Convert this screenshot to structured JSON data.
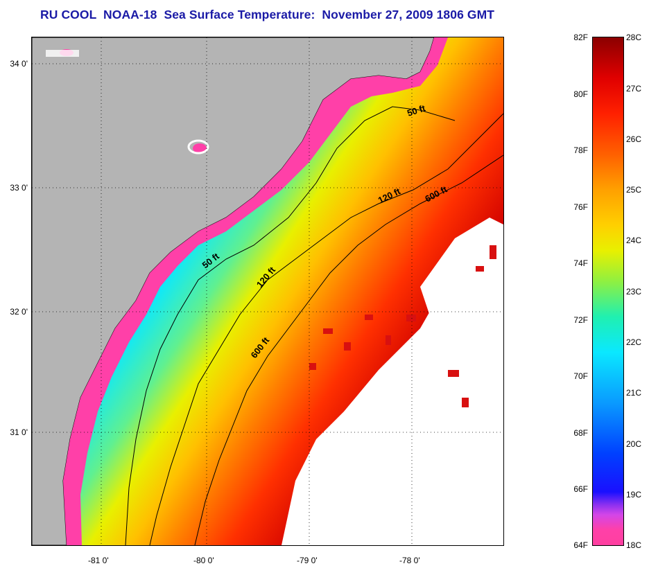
{
  "title": "RU COOL  NOAA-18  Sea Surface Temperature:  November 27, 2009 1806 GMT",
  "map": {
    "lat_labels": [
      "34 0'",
      "33 0'",
      "32 0'",
      "31 0'"
    ],
    "lon_labels": [
      "-81 0'",
      "-80 0'",
      "-79 0'",
      "-78 0'"
    ],
    "lat_range": [
      30.1,
      34.2
    ],
    "lon_range": [
      -81.5,
      -77.0
    ],
    "isobath_labels": [
      "50 ft",
      "50 ft",
      "120 ft",
      "120 ft",
      "600 ft",
      "600 ft"
    ],
    "colors": {
      "land": "#b4b4b4",
      "cloud": "#ffffff",
      "coastal": "#ff40a8"
    }
  },
  "colorbar": {
    "fahrenheit_ticks": [
      "82F",
      "80F",
      "78F",
      "76F",
      "74F",
      "72F",
      "70F",
      "68F",
      "66F",
      "64F"
    ],
    "celsius_ticks": [
      "28C",
      "27C",
      "26C",
      "25C",
      "24C",
      "23C",
      "22C",
      "21C",
      "20C",
      "19C",
      "18C"
    ],
    "range_f": [
      64,
      82
    ],
    "range_c": [
      18,
      28
    ]
  }
}
